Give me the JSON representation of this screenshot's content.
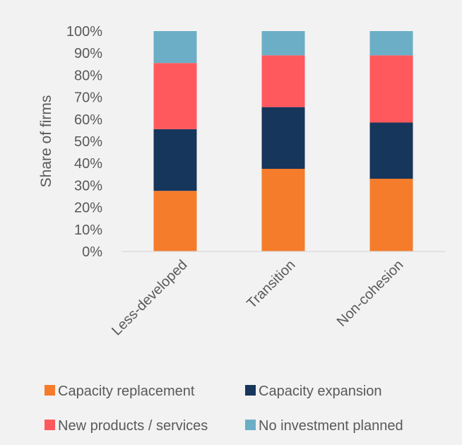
{
  "chart_data": {
    "type": "bar",
    "stacked": true,
    "categories": [
      "Less-developed",
      "Transition",
      "Non-cohesion"
    ],
    "series": [
      {
        "name": "Capacity replacement",
        "values": [
          27.5,
          37.5,
          33
        ],
        "color": "#f47c2a"
      },
      {
        "name": "Capacity expansion",
        "values": [
          28,
          28,
          25.5
        ],
        "color": "#16365c"
      },
      {
        "name": "New products / services",
        "values": [
          30,
          23.5,
          30.5
        ],
        "color": "#ff585d"
      },
      {
        "name": "No investment planned",
        "values": [
          14.5,
          11,
          11
        ],
        "color": "#6caec6"
      }
    ],
    "ylabel": "Share of firms",
    "ylim": [
      0,
      100
    ],
    "yticks": [
      "0%",
      "10%",
      "20%",
      "30%",
      "40%",
      "50%",
      "60%",
      "70%",
      "80%",
      "90%",
      "100%"
    ],
    "grid": false,
    "legend_position": "bottom"
  }
}
